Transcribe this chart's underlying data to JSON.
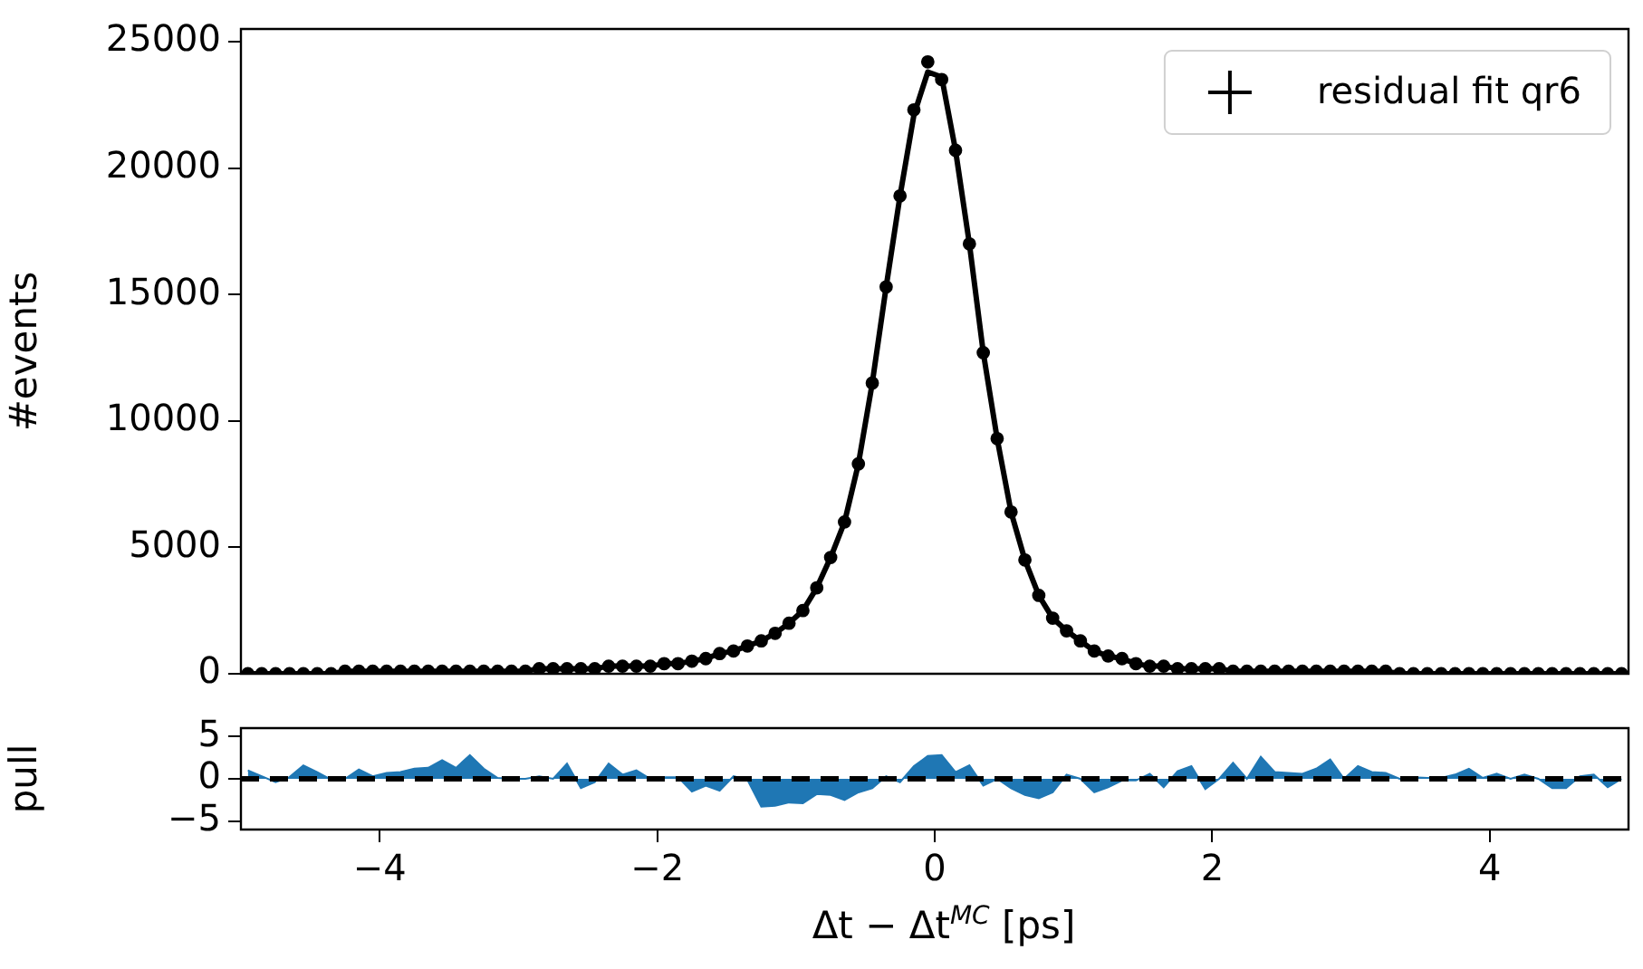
{
  "chart_data": [
    {
      "type": "scatter",
      "ylabel": "#events",
      "xlim": [
        -5,
        5
      ],
      "ylim": [
        0,
        25500
      ],
      "yticks": [
        0,
        5000,
        10000,
        15000,
        20000,
        25000
      ],
      "tick_labels": "y",
      "grid": false,
      "legend": "top right",
      "x": [
        -4.95,
        -4.85,
        -4.75,
        -4.65,
        -4.55,
        -4.45,
        -4.35,
        -4.25,
        -4.15,
        -4.05,
        -3.95,
        -3.85,
        -3.75,
        -3.65,
        -3.55,
        -3.45,
        -3.35,
        -3.25,
        -3.15,
        -3.05,
        -2.95,
        -2.85,
        -2.75,
        -2.65,
        -2.55,
        -2.45,
        -2.35,
        -2.25,
        -2.15,
        -2.05,
        -1.95,
        -1.85,
        -1.75,
        -1.65,
        -1.55,
        -1.45,
        -1.35,
        -1.25,
        -1.15,
        -1.05,
        -0.95,
        -0.85,
        -0.75,
        -0.65,
        -0.55,
        -0.45,
        -0.35,
        -0.25,
        -0.15,
        -0.05,
        0.05,
        0.15,
        0.25,
        0.35,
        0.45,
        0.55,
        0.65,
        0.75,
        0.85,
        0.95,
        1.05,
        1.15,
        1.25,
        1.35,
        1.45,
        1.55,
        1.65,
        1.75,
        1.85,
        1.95,
        2.05,
        2.15,
        2.25,
        2.35,
        2.45,
        2.55,
        2.65,
        2.75,
        2.85,
        2.95,
        3.05,
        3.15,
        3.25,
        3.35,
        3.45,
        3.55,
        3.65,
        3.75,
        3.85,
        3.95,
        4.05,
        4.15,
        4.25,
        4.35,
        4.45,
        4.55,
        4.65,
        4.75,
        4.85,
        4.95
      ],
      "series": [
        {
          "name": "residual fit qr6",
          "marker": "circle",
          "color": "#000000",
          "values": [
            0,
            0,
            0,
            0,
            0,
            0,
            0,
            100,
            100,
            100,
            100,
            100,
            100,
            100,
            100,
            100,
            100,
            100,
            100,
            100,
            100,
            200,
            200,
            200,
            200,
            200,
            300,
            300,
            300,
            300,
            400,
            400,
            500,
            600,
            800,
            900,
            1100,
            1300,
            1600,
            2000,
            2500,
            3400,
            4600,
            6000,
            8300,
            11500,
            15300,
            18900,
            22300,
            24200,
            23500,
            20700,
            17000,
            12700,
            9300,
            6400,
            4500,
            3100,
            2200,
            1700,
            1300,
            900,
            700,
            600,
            400,
            300,
            300,
            200,
            200,
            200,
            200,
            100,
            100,
            100,
            100,
            100,
            100,
            100,
            100,
            100,
            100,
            100,
            100,
            0,
            0,
            0,
            0,
            0,
            0,
            0,
            0,
            0,
            0,
            0,
            0,
            0,
            0,
            0,
            0,
            0
          ]
        },
        {
          "type": "line",
          "marker": "none",
          "line_style": "solid",
          "color": "#000000",
          "values": [
            0,
            0,
            0,
            0,
            0,
            0,
            0,
            100,
            100,
            100,
            100,
            100,
            100,
            100,
            100,
            100,
            100,
            100,
            100,
            100,
            100,
            200,
            200,
            200,
            200,
            200,
            300,
            300,
            300,
            300,
            400,
            400,
            500,
            600,
            800,
            900,
            1100,
            1300,
            1600,
            2000,
            2500,
            3400,
            4600,
            6000,
            8300,
            11500,
            15300,
            18900,
            22100,
            23800,
            23600,
            20700,
            17000,
            12700,
            9300,
            6400,
            4500,
            3100,
            2200,
            1700,
            1300,
            900,
            700,
            600,
            400,
            300,
            300,
            200,
            200,
            200,
            200,
            100,
            100,
            100,
            100,
            100,
            100,
            100,
            100,
            100,
            100,
            100,
            100,
            0,
            0,
            0,
            0,
            0,
            0,
            0,
            0,
            0,
            0,
            0,
            0,
            0,
            0,
            0,
            0,
            0
          ]
        }
      ]
    },
    {
      "type": "area",
      "ylabel": "pull",
      "xlabel": "Δt − Δt$^{MC}$ [ps]",
      "xlim": [
        -5,
        5
      ],
      "xticks": [
        {
          "value": -4,
          "label": "−4"
        },
        {
          "value": -2,
          "label": "−2"
        },
        0,
        2,
        4
      ],
      "ylim": [
        -6,
        6
      ],
      "yticks": [
        {
          "value": -5,
          "label": "−5"
        },
        0,
        5
      ],
      "grid": false,
      "color": "#1f77b4",
      "x": [
        -4.95,
        -4.85,
        -4.75,
        -4.65,
        -4.55,
        -4.45,
        -4.35,
        -4.25,
        -4.15,
        -4.05,
        -3.95,
        -3.85,
        -3.75,
        -3.65,
        -3.55,
        -3.45,
        -3.35,
        -3.25,
        -3.15,
        -3.05,
        -2.95,
        -2.85,
        -2.75,
        -2.65,
        -2.55,
        -2.45,
        -2.35,
        -2.25,
        -2.15,
        -2.05,
        -1.95,
        -1.85,
        -1.75,
        -1.65,
        -1.55,
        -1.45,
        -1.35,
        -1.25,
        -1.15,
        -1.05,
        -0.95,
        -0.85,
        -0.75,
        -0.65,
        -0.55,
        -0.45,
        -0.35,
        -0.25,
        -0.15,
        -0.05,
        0.05,
        0.15,
        0.25,
        0.35,
        0.45,
        0.55,
        0.65,
        0.75,
        0.85,
        0.95,
        1.05,
        1.15,
        1.25,
        1.35,
        1.45,
        1.55,
        1.65,
        1.75,
        1.85,
        1.95,
        2.05,
        2.15,
        2.25,
        2.35,
        2.45,
        2.55,
        2.65,
        2.75,
        2.85,
        2.95,
        3.05,
        3.15,
        3.25,
        3.35,
        3.45,
        3.55,
        3.65,
        3.75,
        3.85,
        3.95,
        4.05,
        4.15,
        4.25,
        4.35,
        4.45,
        4.55,
        4.65,
        4.75,
        4.85,
        4.95
      ],
      "values": [
        1.0,
        0.3,
        -0.4,
        0.2,
        1.6,
        0.8,
        -0.1,
        0,
        1.1,
        0.3,
        0.7,
        0.8,
        1.2,
        1.3,
        2.2,
        1.3,
        2.8,
        1.2,
        0.1,
        0,
        0,
        0.3,
        0,
        1.8,
        -1.1,
        -0.4,
        1.8,
        0.5,
        1.0,
        0,
        0.2,
        0.2,
        -1.5,
        -0.8,
        -1.4,
        0.3,
        -0.1,
        -3.3,
        -3.2,
        -2.8,
        -2.9,
        -1.8,
        -1.9,
        -2.5,
        -1.6,
        -1.1,
        0.3,
        -0.4,
        1.5,
        2.7,
        2.8,
        0.8,
        1.6,
        -0.8,
        0,
        -1.1,
        -1.9,
        -2.3,
        -1.6,
        0.5,
        0,
        -1.6,
        -1.0,
        -0.2,
        -0.2,
        0.6,
        -1.0,
        0.9,
        1.5,
        -1.2,
        0,
        1.9,
        0,
        2.6,
        0.8,
        0.7,
        0.6,
        1.2,
        2.3,
        0,
        1.5,
        0.8,
        0.7,
        0,
        0.2,
        0.1,
        0.1,
        0.5,
        1.2,
        0.1,
        0.6,
        0,
        0.5,
        0,
        -1.1,
        -1.1,
        0.3,
        0.5,
        -1.0,
        0
      ],
      "ref_lines": [
        {
          "axis": "y",
          "value": 0,
          "color": "#000000",
          "line_style": "dashed"
        }
      ]
    }
  ]
}
